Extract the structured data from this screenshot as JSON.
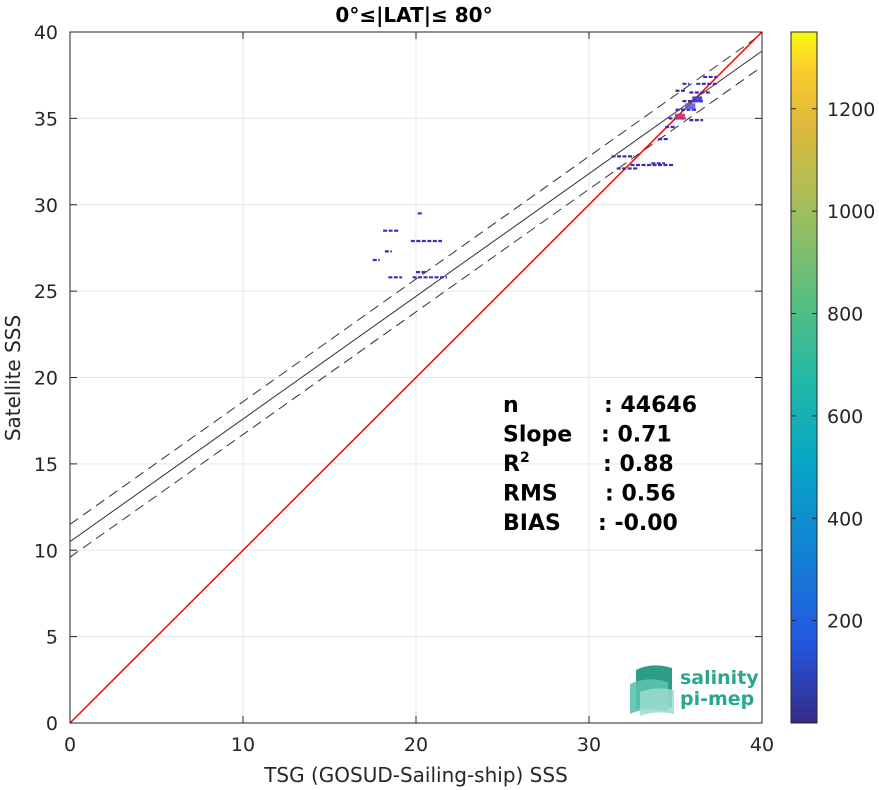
{
  "chart_data": {
    "type": "heatmap",
    "title": "0°≤|LAT|≤ 80°",
    "xlabel": "TSG (GOSUD-Sailing-ship) SSS",
    "ylabel": "Satellite SSS",
    "xlim": [
      0,
      40
    ],
    "ylim": [
      0,
      40
    ],
    "xticks": [
      "0",
      "10",
      "20",
      "30",
      "40"
    ],
    "yticks": [
      "0",
      "5",
      "10",
      "15",
      "20",
      "25",
      "30",
      "35",
      "40"
    ],
    "grid": true,
    "colorbar": {
      "range": [
        0,
        1350
      ],
      "ticks": [
        "200",
        "400",
        "600",
        "800",
        "1000",
        "1200"
      ],
      "tick_values": [
        200,
        400,
        600,
        800,
        1000,
        1200
      ]
    },
    "lines": {
      "identity": {
        "slope": 1,
        "intercept": 0,
        "color": "#ff0000"
      },
      "fit": {
        "slope": 0.71,
        "intercept": 10.5,
        "color": "#333333"
      },
      "fit_upper": {
        "slope": 0.71,
        "intercept": 11.5,
        "color": "#333333"
      },
      "fit_lower": {
        "slope": 0.71,
        "intercept": 9.6,
        "color": "#333333"
      }
    },
    "stats": [
      {
        "label": "n",
        "value": ": 44646"
      },
      {
        "label": "Slope",
        "value": ": 0.71"
      },
      {
        "label": "R",
        "sup": "2",
        "value": ": 0.88"
      },
      {
        "label": "RMS",
        "value": ": 0.56"
      },
      {
        "label": "BIAS",
        "value": ": -0.00"
      }
    ],
    "scatter_segments": [
      {
        "x1": 18.1,
        "x2": 19.0,
        "y": 28.5
      },
      {
        "x1": 20.1,
        "x2": 20.4,
        "y": 29.5
      },
      {
        "x1": 19.7,
        "x2": 21.5,
        "y": 27.9
      },
      {
        "x1": 18.2,
        "x2": 18.6,
        "y": 27.3
      },
      {
        "x1": 17.5,
        "x2": 17.9,
        "y": 26.8
      },
      {
        "x1": 18.4,
        "x2": 19.2,
        "y": 25.8
      },
      {
        "x1": 20.0,
        "x2": 20.6,
        "y": 26.1
      },
      {
        "x1": 19.8,
        "x2": 21.8,
        "y": 25.8
      },
      {
        "x1": 31.3,
        "x2": 32.6,
        "y": 32.8
      },
      {
        "x1": 31.6,
        "x2": 32.8,
        "y": 32.1
      },
      {
        "x1": 32.4,
        "x2": 34.9,
        "y": 32.3
      },
      {
        "x1": 33.6,
        "x2": 34.4,
        "y": 32.4
      },
      {
        "x1": 34.4,
        "x2": 35.0,
        "y": 34.5
      },
      {
        "x1": 34.6,
        "x2": 35.6,
        "y": 35.0
      },
      {
        "x1": 35.0,
        "x2": 36.2,
        "y": 35.5
      },
      {
        "x1": 35.4,
        "x2": 36.6,
        "y": 36.0
      },
      {
        "x1": 35.8,
        "x2": 37.0,
        "y": 36.5
      },
      {
        "x1": 36.2,
        "x2": 37.4,
        "y": 37.0
      },
      {
        "x1": 36.6,
        "x2": 37.4,
        "y": 37.4
      },
      {
        "x1": 35.8,
        "x2": 36.6,
        "y": 34.9
      },
      {
        "x1": 34.0,
        "x2": 34.6,
        "y": 33.8
      },
      {
        "x1": 35.4,
        "x2": 35.8,
        "y": 37.0
      },
      {
        "x1": 35.0,
        "x2": 35.6,
        "y": 36.6
      }
    ],
    "dense_core": [
      {
        "x": 35.2,
        "y": 35.1,
        "color": "#c0306a"
      },
      {
        "x": 35.8,
        "y": 35.7,
        "color": "#5a5ae8"
      },
      {
        "x": 36.2,
        "y": 36.1,
        "color": "#3b3bd0"
      }
    ]
  },
  "logo": {
    "line1": "salinity",
    "line2": "pi-mep"
  }
}
